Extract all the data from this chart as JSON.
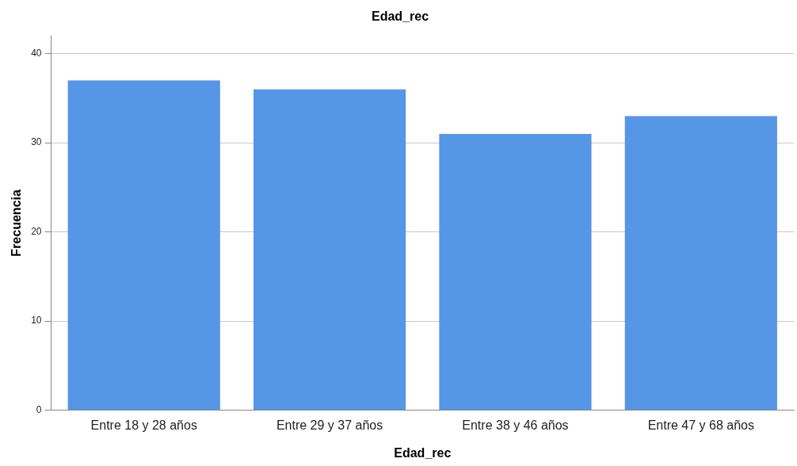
{
  "chart_data": {
    "type": "bar",
    "title": "Edad_rec",
    "xlabel": "Edad_rec",
    "ylabel": "Frecuencia",
    "categories": [
      "Entre 18 y 28 años",
      "Entre 29 y 37 años",
      "Entre 38 y 46 años",
      "Entre 47 y 68 años"
    ],
    "values": [
      37,
      36,
      31,
      33
    ],
    "color": "#5596e6",
    "ylim": [
      0,
      42
    ],
    "yticks": [
      0,
      10,
      20,
      30,
      40
    ],
    "grid": "y",
    "legend": false
  }
}
